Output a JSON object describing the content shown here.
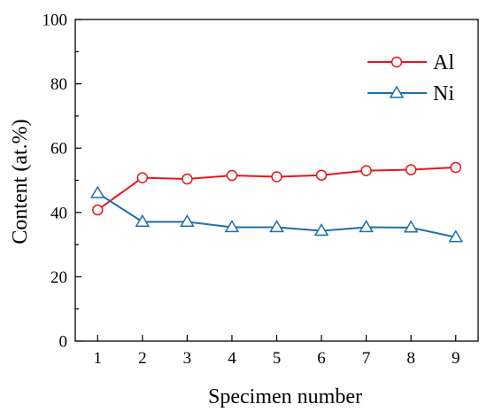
{
  "chart_data": {
    "type": "line",
    "title": "",
    "xlabel": "Specimen number",
    "ylabel": "Content (at.%)",
    "x": [
      1,
      2,
      3,
      4,
      5,
      6,
      7,
      8,
      9
    ],
    "xlim": [
      0.5,
      9.5
    ],
    "ylim": [
      0,
      100
    ],
    "xticks": [
      1,
      2,
      3,
      4,
      5,
      6,
      7,
      8,
      9
    ],
    "yticks": [
      0,
      20,
      40,
      60,
      80,
      100
    ],
    "grid": false,
    "legend_position": "top-right",
    "series": [
      {
        "name": "Al",
        "color": "#e8141c",
        "marker": "circle",
        "values": [
          40.8,
          50.8,
          50.4,
          51.5,
          51.1,
          51.6,
          53.0,
          53.3,
          54.0
        ]
      },
      {
        "name": "Ni",
        "color": "#1f6fa8",
        "marker": "triangle",
        "values": [
          46.0,
          37.1,
          37.1,
          35.4,
          35.4,
          34.3,
          35.4,
          35.3,
          32.3
        ]
      }
    ]
  }
}
